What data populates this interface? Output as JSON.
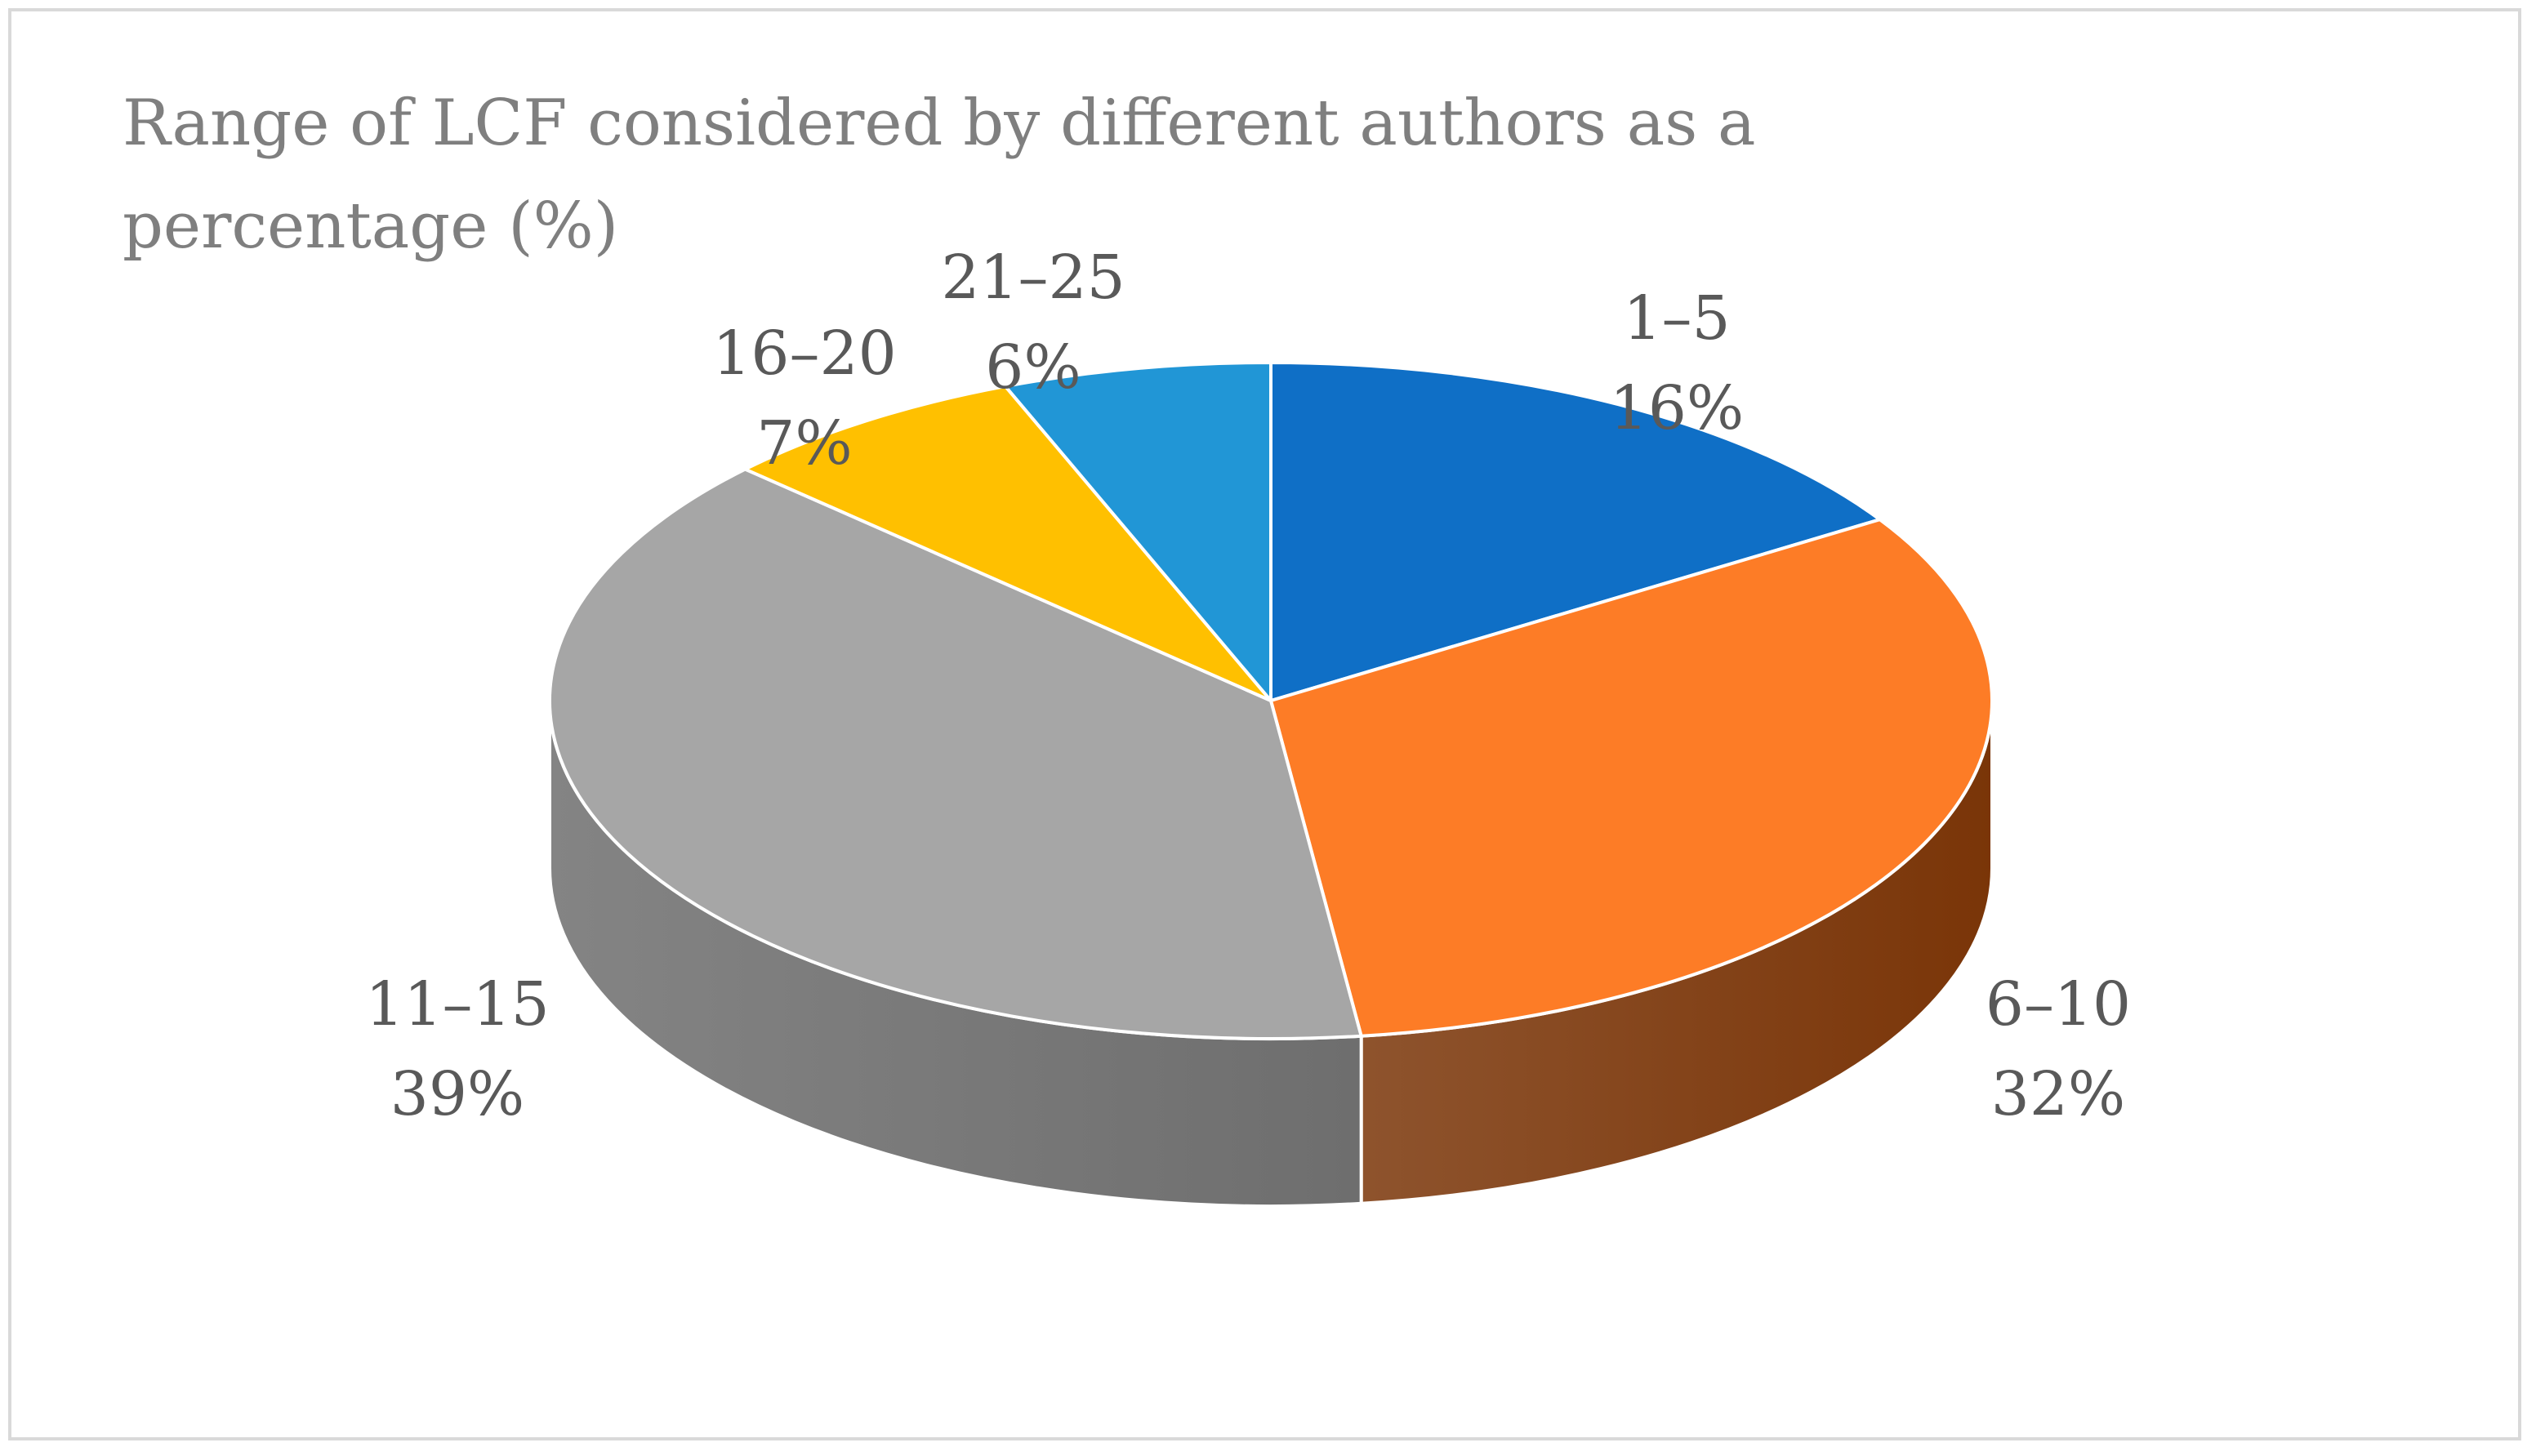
{
  "chart_data": {
    "type": "pie",
    "title": "Range of LCF considered by different authors as a percentage (%)",
    "categories": [
      "1–5",
      "6–10",
      "11–15",
      "16–20",
      "21–25"
    ],
    "values": [
      16,
      32,
      39,
      7,
      6
    ],
    "value_labels": [
      "16%",
      "32%",
      "39%",
      "7%",
      "6%"
    ],
    "colors": [
      "#0f6fc6",
      "#fd7c26",
      "#a6a6a6",
      "#ffc000",
      "#2196d6"
    ],
    "side_colors": [
      "#0b4f8e",
      "#7a3508",
      "#6e6e6e",
      "#b38600",
      "#16699a"
    ],
    "style": "3d",
    "legend": "none",
    "data_labels": "category-and-percent, outside"
  }
}
